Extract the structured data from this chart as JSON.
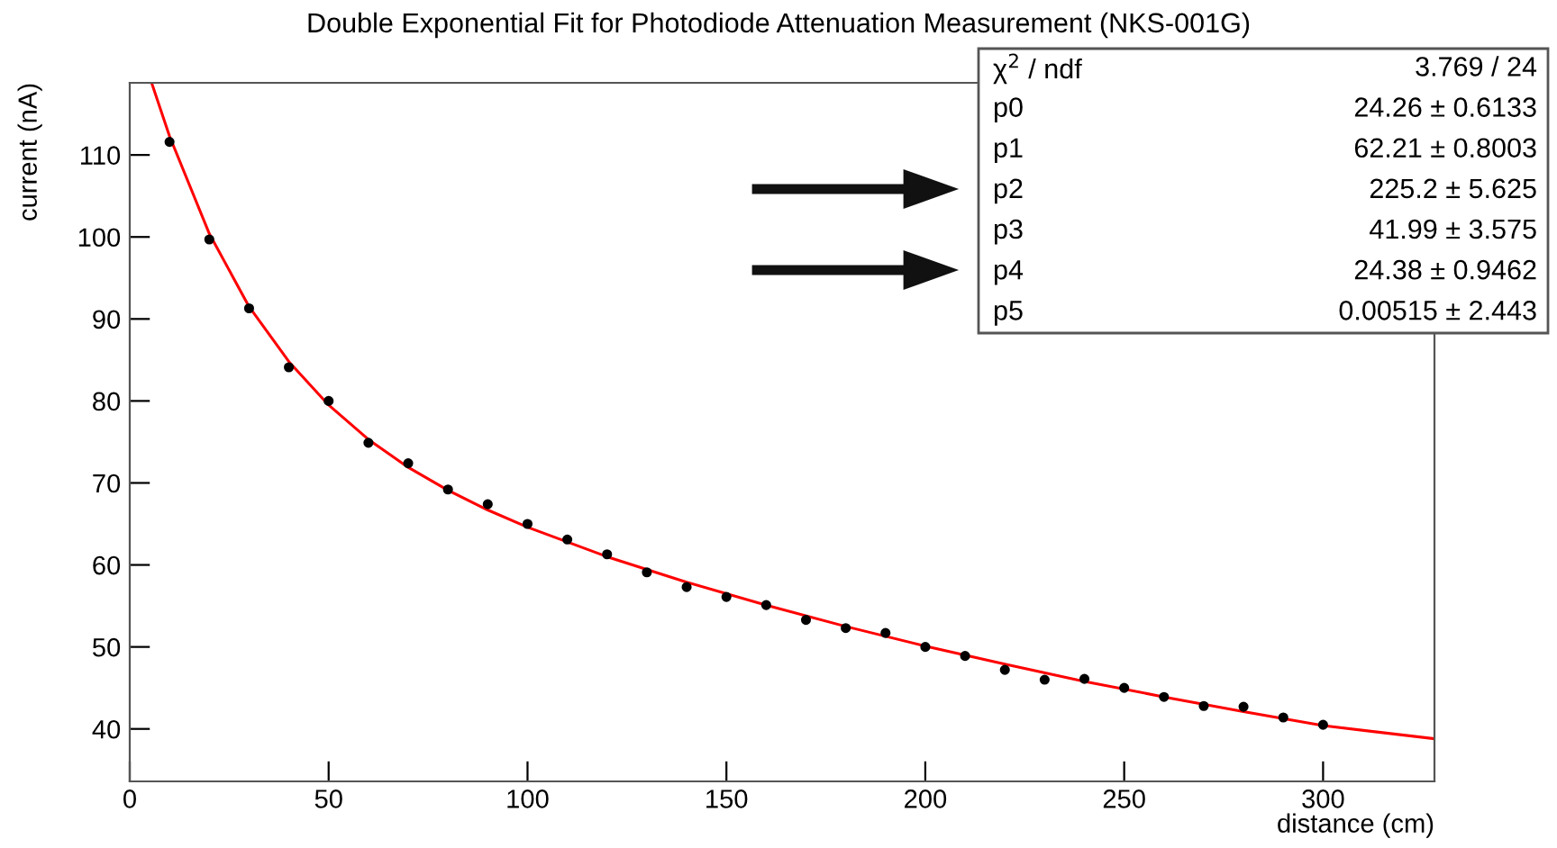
{
  "chart_data": {
    "type": "scatter",
    "title": "Double Exponential Fit for Photodiode Attenuation Measurement (NKS-001G)",
    "xlabel": "distance (cm)",
    "ylabel": "current (nA)",
    "xlim": [
      0,
      328
    ],
    "ylim": [
      33.6,
      118.8
    ],
    "xticks": [
      0,
      50,
      100,
      150,
      200,
      250,
      300
    ],
    "yticks": [
      40,
      50,
      60,
      70,
      80,
      90,
      100,
      110
    ],
    "grid": false,
    "legend": false,
    "marker": "circle",
    "series": [
      {
        "color": "#000000",
        "x": [
          10,
          20,
          30,
          40,
          50,
          60,
          70,
          80,
          90,
          100,
          110,
          120,
          130,
          140,
          150,
          160,
          170,
          180,
          190,
          200,
          210,
          220,
          230,
          240,
          250,
          260,
          270,
          280,
          290,
          300
        ],
        "values": [
          111.6,
          99.7,
          91.3,
          84.1,
          80.0,
          74.9,
          72.4,
          69.2,
          67.4,
          65.0,
          63.1,
          61.3,
          59.1,
          57.3,
          56.1,
          55.1,
          53.3,
          52.3,
          51.7,
          50.0,
          48.9,
          47.2,
          46.0,
          46.1,
          45.0,
          43.9,
          42.8,
          42.7,
          41.4,
          40.5
        ]
      },
      {
        "type": "line",
        "color": "#ff0000",
        "marker": "none",
        "x": [
          5.5,
          10,
          20,
          30,
          40,
          50,
          60,
          70,
          80,
          90,
          100,
          120,
          140,
          160,
          180,
          200,
          220,
          240,
          260,
          280,
          300,
          328
        ],
        "values": [
          118.8,
          112.3,
          100.4,
          91.5,
          84.8,
          79.5,
          75.3,
          71.9,
          69.1,
          66.7,
          64.6,
          61.0,
          57.9,
          55.1,
          52.5,
          50.1,
          47.9,
          45.8,
          43.9,
          42.1,
          40.4,
          38.8
        ]
      }
    ],
    "annotations": [
      "χ$^{2}$ / ndf",
      "3.769 / 24",
      "p0",
      "24.26 ± 0.6133",
      "p1",
      "62.21 ± 0.8003",
      "p2",
      "225.2 ± 5.625",
      "p3",
      "41.99 ± 3.575",
      "p4",
      "24.38 ± 0.9462",
      "p5",
      "0.00515 ± 2.443"
    ]
  }
}
